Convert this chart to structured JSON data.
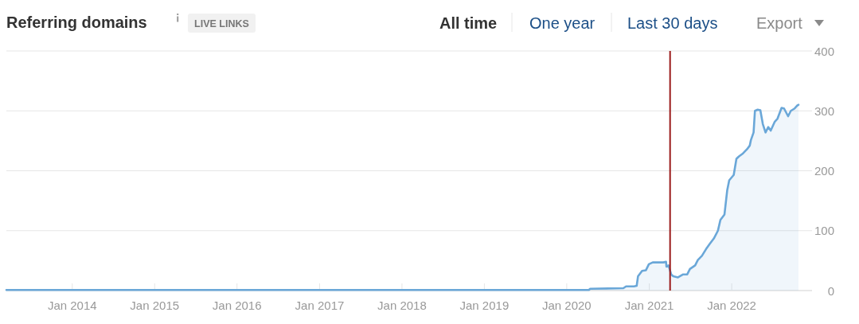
{
  "chart_data": {
    "type": "area",
    "title": "Referring domains",
    "subtitle": "LIVE LINKS",
    "annotations": [
      "All time",
      "One year",
      "Last 30 days",
      "Export"
    ],
    "x": [
      "2013-03-15",
      "2020-04-08",
      "2020-04-14",
      "2020-09-08",
      "2020-09-20",
      "2020-10-25",
      "2020-11-06",
      "2020-11-12",
      "2020-11-30",
      "2020-12-17",
      "2020-12-30",
      "2021-01-16",
      "2021-03-04",
      "2021-03-16",
      "2021-03-18",
      "2021-03-27",
      "2021-04-08",
      "2021-04-17",
      "2021-05-08",
      "2021-05-31",
      "2021-06-18",
      "2021-06-30",
      "2021-07-23",
      "2021-08-04",
      "2021-08-22",
      "2021-09-09",
      "2021-09-26",
      "2021-10-14",
      "2021-11-01",
      "2021-11-12",
      "2021-11-30",
      "2021-12-12",
      "2021-12-21",
      "2022-01-10",
      "2022-01-22",
      "2022-02-02",
      "2022-02-20",
      "2022-03-10",
      "2022-03-22",
      "2022-03-27",
      "2022-04-08",
      "2022-04-14",
      "2022-04-26",
      "2022-05-08",
      "2022-05-19",
      "2022-05-31",
      "2022-06-12",
      "2022-06-23",
      "2022-07-11",
      "2022-07-23",
      "2022-08-10",
      "2022-08-21",
      "2022-09-08",
      "2022-09-20",
      "2022-10-07",
      "2022-10-19",
      "2022-10-24"
    ],
    "values": [
      1,
      1,
      3,
      4,
      7,
      7,
      8,
      24,
      33,
      34,
      44,
      47,
      47,
      48,
      40,
      42,
      27,
      24,
      22,
      27,
      27,
      36,
      42,
      51,
      58,
      69,
      78,
      87,
      100,
      118,
      127,
      167,
      184,
      193,
      220,
      224,
      229,
      236,
      242,
      251,
      264,
      300,
      302,
      301,
      278,
      264,
      273,
      267,
      282,
      287,
      305,
      304,
      291,
      300,
      304,
      309,
      310
    ],
    "color": "#6aa7d8",
    "xlim": [
      "2013-03-15",
      "2022-12-23"
    ],
    "xticks": [
      {
        "value": "2014-01-01",
        "label": "Jan 2014"
      },
      {
        "value": "2015-01-01",
        "label": "Jan 2015"
      },
      {
        "value": "2016-01-01",
        "label": "Jan 2016"
      },
      {
        "value": "2017-01-01",
        "label": "Jan 2017"
      },
      {
        "value": "2018-01-01",
        "label": "Jan 2018"
      },
      {
        "value": "2019-01-01",
        "label": "Jan 2019"
      },
      {
        "value": "2020-01-01",
        "label": "Jan 2020"
      },
      {
        "value": "2021-01-01",
        "label": "Jan 2021"
      },
      {
        "value": "2022-01-01",
        "label": "Jan 2022"
      }
    ],
    "ylim": [
      0,
      400
    ],
    "yticks": [
      0,
      100,
      200,
      300,
      400
    ],
    "grid": "y",
    "ref_lines": [
      {
        "axis": "x",
        "value": "2021-04-03",
        "color": "#9b1b1b"
      }
    ]
  }
}
